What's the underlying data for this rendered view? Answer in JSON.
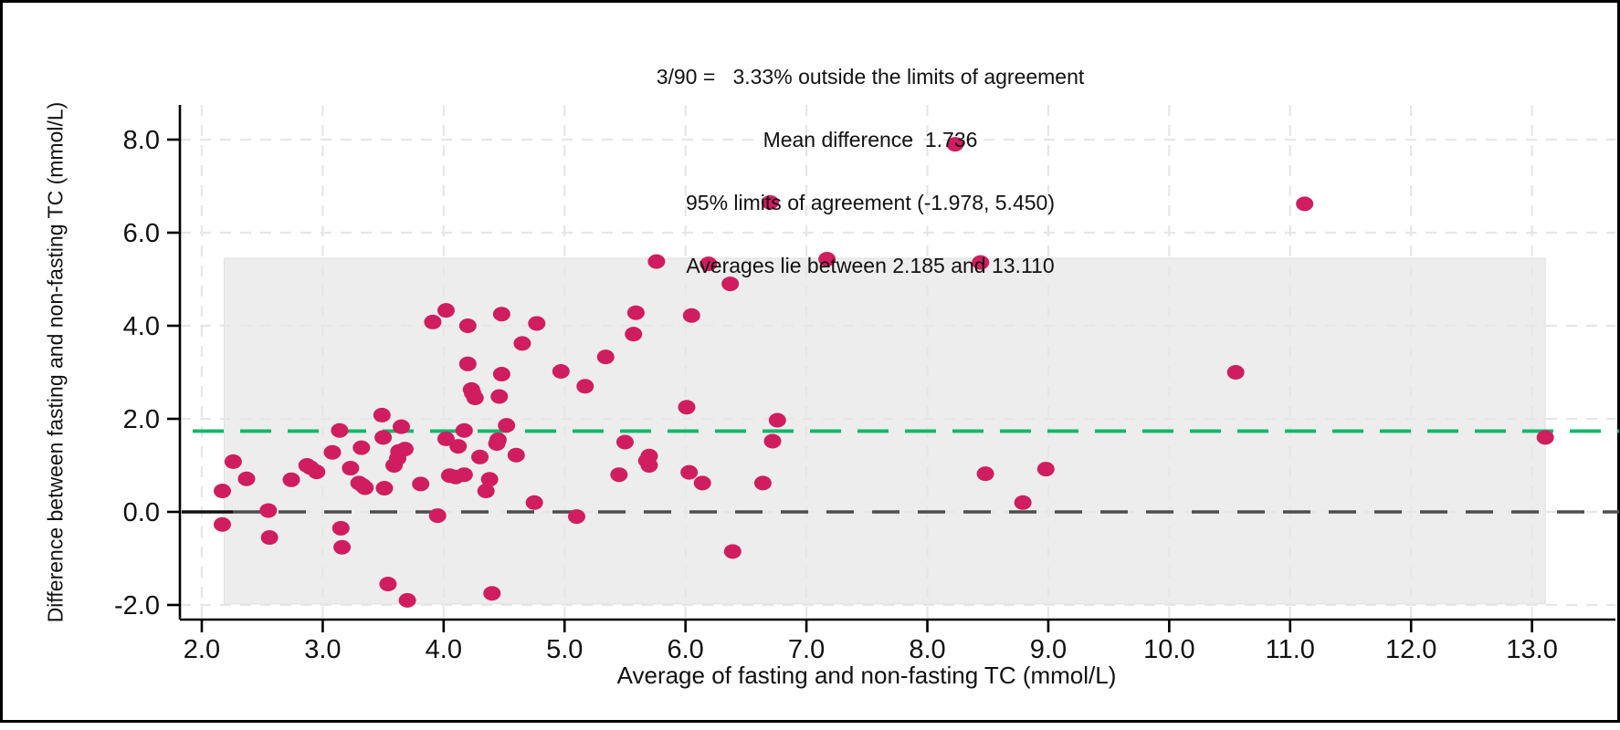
{
  "annotation": {
    "line1": "3/90 =   3.33% outside the limits of agreement",
    "line2": "Mean difference  1.736",
    "line3": "95% limits of agreement (-1.978, 5.450)",
    "line4": "Averages lie between 2.185 and 13.110"
  },
  "axes": {
    "x": {
      "label": "Average of fasting and non-fasting TC (mmol/L)",
      "ticks": [
        2,
        3,
        4,
        5,
        6,
        7,
        8,
        9,
        10,
        11,
        12,
        13
      ],
      "tick_labels": [
        "2.0",
        "3.0",
        "4.0",
        "5.0",
        "6.0",
        "7.0",
        "8.0",
        "9.0",
        "10.0",
        "11.0",
        "12.0",
        "13.0"
      ]
    },
    "y": {
      "label": "Difference between fasting and non-fasting TC (mmol/L)",
      "ticks": [
        8,
        6,
        4,
        2,
        0,
        -2
      ],
      "tick_labels": [
        "8.0",
        "6.0",
        "4.0",
        "2.0",
        "0.0",
        "-2.0"
      ]
    }
  },
  "chart_data": {
    "type": "scatter",
    "title": "3/90 = 3.33% outside the limits of agreement; Mean difference 1.736; 95% limits of agreement (-1.978, 5.450); Averages lie between 2.185 and 13.110",
    "xlabel": "Average of fasting and non-fasting TC (mmol/L)",
    "ylabel": "Difference between fasting and non-fasting TC (mmol/L)",
    "x_range": [
      1.819,
      13.69
    ],
    "y_range": [
      -2.314,
      8.745
    ],
    "grid": true,
    "stats": {
      "n_total": 90,
      "n_outside_loa": 3,
      "pct_outside_loa": 3.33,
      "mean_difference": 1.736,
      "loa_lower": -1.978,
      "loa_upper": 5.45,
      "averages_min": 2.185,
      "averages_max": 13.11
    },
    "mean_line": 1.736,
    "zero_line": 0,
    "loa_band": {
      "x1": 2.185,
      "x2": 13.11,
      "y1": -1.978,
      "y2": 5.45
    },
    "points": [
      [
        2.17,
        0.45
      ],
      [
        2.17,
        -0.27
      ],
      [
        2.26,
        1.08
      ],
      [
        2.37,
        0.71
      ],
      [
        2.55,
        0.03
      ],
      [
        2.56,
        -0.55
      ],
      [
        2.74,
        0.69
      ],
      [
        2.87,
        1.0
      ],
      [
        2.9,
        0.95
      ],
      [
        2.95,
        0.86
      ],
      [
        3.08,
        1.28
      ],
      [
        3.14,
        1.75
      ],
      [
        3.15,
        -0.35
      ],
      [
        3.16,
        -0.76
      ],
      [
        3.23,
        0.94
      ],
      [
        3.3,
        0.62
      ],
      [
        3.32,
        1.38
      ],
      [
        3.33,
        0.57
      ],
      [
        3.35,
        0.52
      ],
      [
        3.49,
        2.08
      ],
      [
        3.5,
        1.6
      ],
      [
        3.51,
        0.51
      ],
      [
        3.54,
        -1.55
      ],
      [
        3.59,
        1.0
      ],
      [
        3.62,
        1.15
      ],
      [
        3.63,
        1.3
      ],
      [
        3.65,
        1.83
      ],
      [
        3.68,
        1.35
      ],
      [
        3.7,
        -1.9
      ],
      [
        3.81,
        0.6
      ],
      [
        3.91,
        4.08
      ],
      [
        3.95,
        -0.08
      ],
      [
        4.02,
        4.33
      ],
      [
        4.02,
        1.57
      ],
      [
        4.05,
        0.78
      ],
      [
        4.1,
        0.75
      ],
      [
        4.12,
        1.41
      ],
      [
        4.17,
        1.75
      ],
      [
        4.17,
        0.8
      ],
      [
        4.2,
        4.0
      ],
      [
        4.2,
        3.18
      ],
      [
        4.23,
        2.63
      ],
      [
        4.24,
        2.55
      ],
      [
        4.26,
        2.45
      ],
      [
        4.3,
        1.18
      ],
      [
        4.35,
        0.45
      ],
      [
        4.38,
        0.7
      ],
      [
        4.4,
        -1.75
      ],
      [
        4.44,
        1.47
      ],
      [
        4.45,
        1.55
      ],
      [
        4.46,
        2.48
      ],
      [
        4.48,
        4.25
      ],
      [
        4.48,
        2.96
      ],
      [
        4.52,
        1.86
      ],
      [
        4.6,
        1.22
      ],
      [
        4.65,
        3.62
      ],
      [
        4.75,
        0.2
      ],
      [
        4.77,
        4.05
      ],
      [
        4.97,
        3.02
      ],
      [
        5.1,
        -0.1
      ],
      [
        5.17,
        2.7
      ],
      [
        5.34,
        3.33
      ],
      [
        5.45,
        0.8
      ],
      [
        5.5,
        1.5
      ],
      [
        5.57,
        3.82
      ],
      [
        5.59,
        4.28
      ],
      [
        5.68,
        1.1
      ],
      [
        5.7,
        1.2
      ],
      [
        5.7,
        1.0
      ],
      [
        5.76,
        5.38
      ],
      [
        6.01,
        2.25
      ],
      [
        6.03,
        0.85
      ],
      [
        6.05,
        4.22
      ],
      [
        6.14,
        0.62
      ],
      [
        6.19,
        5.33
      ],
      [
        6.37,
        4.9
      ],
      [
        6.39,
        -0.85
      ],
      [
        6.64,
        0.62
      ],
      [
        6.7,
        6.65
      ],
      [
        6.72,
        1.52
      ],
      [
        6.76,
        1.97
      ],
      [
        7.17,
        5.43
      ],
      [
        8.23,
        7.9
      ],
      [
        8.44,
        5.36
      ],
      [
        8.48,
        0.82
      ],
      [
        8.79,
        0.2
      ],
      [
        8.98,
        0.92
      ],
      [
        10.55,
        3.0
      ],
      [
        11.12,
        6.62
      ],
      [
        13.11,
        1.6
      ]
    ]
  },
  "colors": {
    "point": "#d01d5f",
    "mean_line": "#12b76a",
    "zero_line": "#4d4d4d",
    "band_fill": "#ededed",
    "band_edge": "#e0e0e0",
    "gridline": "#e6e6e6",
    "axis": "#000000",
    "frame": "#000000"
  }
}
